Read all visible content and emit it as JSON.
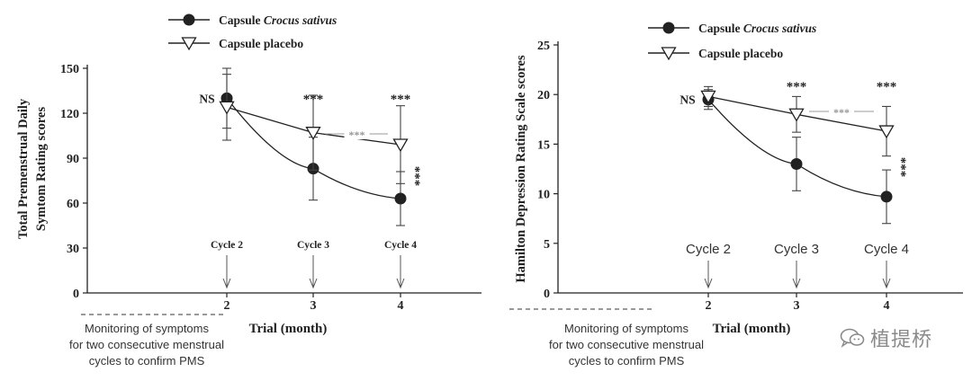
{
  "chart_data": [
    {
      "type": "line",
      "ylabel_lines": [
        "Total Premenstrual Daily",
        "Symtom Rating scores"
      ],
      "xlabel": "Trial (month)",
      "x": [
        2,
        3,
        4
      ],
      "xticks": [
        "2",
        "3",
        "4"
      ],
      "yticks": [
        0,
        30,
        60,
        90,
        120,
        150
      ],
      "ylim": [
        0,
        150
      ],
      "series": [
        {
          "name": "Capsule Crocus sativus",
          "marker": "filled-circle",
          "values": [
            130,
            83,
            63
          ],
          "errors": [
            20,
            21,
            18
          ]
        },
        {
          "name": "Capsule placebo",
          "marker": "open-triangle-down",
          "values": [
            124,
            107,
            99
          ],
          "errors": [
            22,
            25,
            26
          ]
        }
      ],
      "legend": {
        "placement": "top-left",
        "entries": [
          {
            "prefix": "Capsule ",
            "italic": "Crocus sativus",
            "suffix": ""
          },
          {
            "prefix": "Capsule placebo",
            "italic": "",
            "suffix": ""
          }
        ]
      },
      "cycle_labels": [
        "Cycle 2",
        "Cycle 3",
        "Cycle 4"
      ],
      "annotations": {
        "ns": "NS",
        "sig": "***"
      },
      "monitoring_lines": [
        "Monitoring of symptoms",
        "for two consecutive menstrual",
        "cycles to confirm PMS"
      ],
      "grid": false
    },
    {
      "type": "line",
      "ylabel_lines": [
        "Hamilton Depression Rating Scale scores"
      ],
      "xlabel": "Trial (month)",
      "x": [
        2,
        3,
        4
      ],
      "xticks": [
        "2",
        "3",
        "4"
      ],
      "yticks": [
        0,
        5,
        10,
        15,
        20,
        25
      ],
      "ylim": [
        0,
        25
      ],
      "series": [
        {
          "name": "Capsule Crocus sativus",
          "marker": "filled-circle",
          "values": [
            19.5,
            13,
            9.7
          ],
          "errors": [
            1.0,
            2.7,
            2.7
          ]
        },
        {
          "name": "Capsule placebo",
          "marker": "open-triangle-down",
          "values": [
            19.8,
            18,
            16.3
          ],
          "errors": [
            1.0,
            1.8,
            2.5
          ]
        }
      ],
      "legend": {
        "placement": "top-left",
        "entries": [
          {
            "prefix": "Capsule ",
            "italic": "Crocus sativus",
            "suffix": ""
          },
          {
            "prefix": "Capsule placebo",
            "italic": "",
            "suffix": ""
          }
        ]
      },
      "cycle_labels": [
        "Cycle 2",
        "Cycle 3",
        "Cycle 4"
      ],
      "annotations": {
        "ns": "NS",
        "sig": "***"
      },
      "monitoring_lines": [
        "Monitoring of symptoms",
        "for two consecutive menstrual",
        "cycles to confirm PMS"
      ],
      "grid": false
    }
  ],
  "watermark": "植提桥"
}
